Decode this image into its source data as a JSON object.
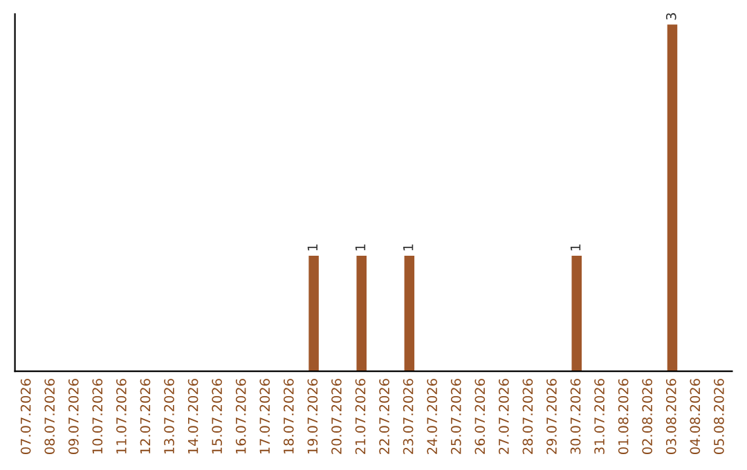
{
  "chart_data": {
    "type": "bar",
    "categories": [
      "07.07.2026",
      "08.07.2026",
      "09.07.2026",
      "10.07.2026",
      "11.07.2026",
      "12.07.2026",
      "13.07.2026",
      "14.07.2026",
      "15.07.2026",
      "16.07.2026",
      "17.07.2026",
      "18.07.2026",
      "19.07.2026",
      "20.07.2026",
      "21.07.2026",
      "22.07.2026",
      "23.07.2026",
      "24.07.2026",
      "25.07.2026",
      "26.07.2026",
      "27.07.2026",
      "28.07.2026",
      "29.07.2026",
      "30.07.2026",
      "31.07.2026",
      "01.08.2026",
      "02.08.2026",
      "03.08.2026",
      "04.08.2026",
      "05.08.2026"
    ],
    "values": [
      null,
      null,
      null,
      null,
      null,
      null,
      null,
      null,
      null,
      null,
      null,
      null,
      1,
      null,
      1,
      null,
      1,
      null,
      null,
      null,
      null,
      null,
      null,
      1,
      null,
      null,
      null,
      3,
      null,
      null
    ],
    "value_labels": [
      null,
      null,
      null,
      null,
      null,
      null,
      null,
      null,
      null,
      null,
      null,
      null,
      "1",
      null,
      "1",
      null,
      "1",
      null,
      null,
      null,
      null,
      null,
      null,
      "1",
      null,
      null,
      null,
      "3",
      null,
      null
    ],
    "color": "#a0572a",
    "tick_labels": "x",
    "grid": false,
    "legend": false
  }
}
